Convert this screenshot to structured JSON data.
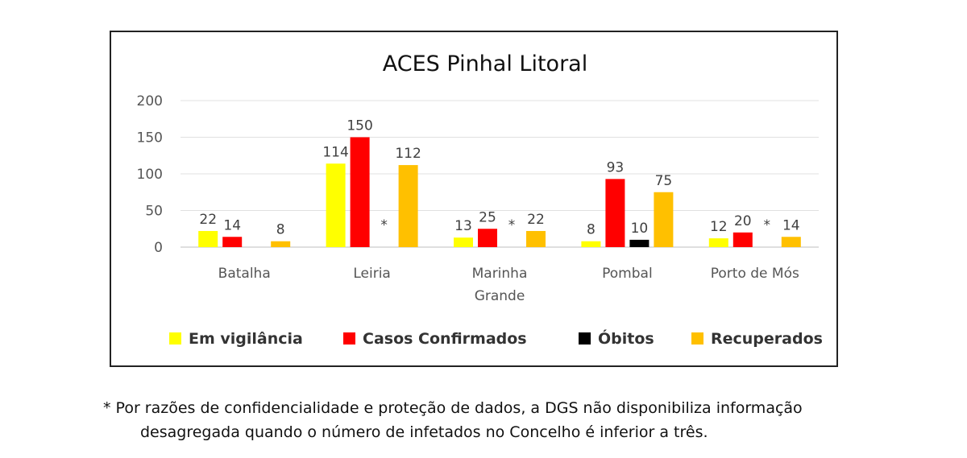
{
  "chart_data": {
    "type": "bar",
    "title": "ACES Pinhal Litoral",
    "categories": [
      "Batalha",
      "Leiria",
      "Marinha Grande",
      "Pombal",
      "Porto de Mós"
    ],
    "category_lines": [
      [
        "Batalha"
      ],
      [
        "Leiria"
      ],
      [
        "Marinha",
        "Grande"
      ],
      [
        "Pombal"
      ],
      [
        "Porto de Mós"
      ]
    ],
    "series": [
      {
        "name": "Em vigilância",
        "color": "#ffff00",
        "values": [
          22,
          114,
          13,
          8,
          12
        ]
      },
      {
        "name": "Casos Confirmados",
        "color": "#ff0000",
        "values": [
          14,
          150,
          25,
          93,
          20
        ]
      },
      {
        "name": "Óbitos",
        "color": "#000000",
        "values": [
          null,
          null,
          null,
          10,
          null
        ]
      },
      {
        "name": "Recuperados",
        "color": "#ffc000",
        "values": [
          8,
          112,
          22,
          75,
          14
        ]
      }
    ],
    "suppressed_marker": "*",
    "suppressed": [
      [],
      [
        2
      ],
      [
        2
      ],
      [],
      [
        2
      ]
    ],
    "ylim": [
      0,
      200
    ],
    "yticks": [
      0,
      50,
      100,
      150,
      200
    ],
    "grid": true,
    "legend_position": "bottom"
  },
  "footnote": {
    "line1": "* Por razões de confidencialidade e proteção de dados, a DGS não disponibiliza informação",
    "line2": "desagregada quando o número de infetados no Concelho é inferior a três."
  }
}
